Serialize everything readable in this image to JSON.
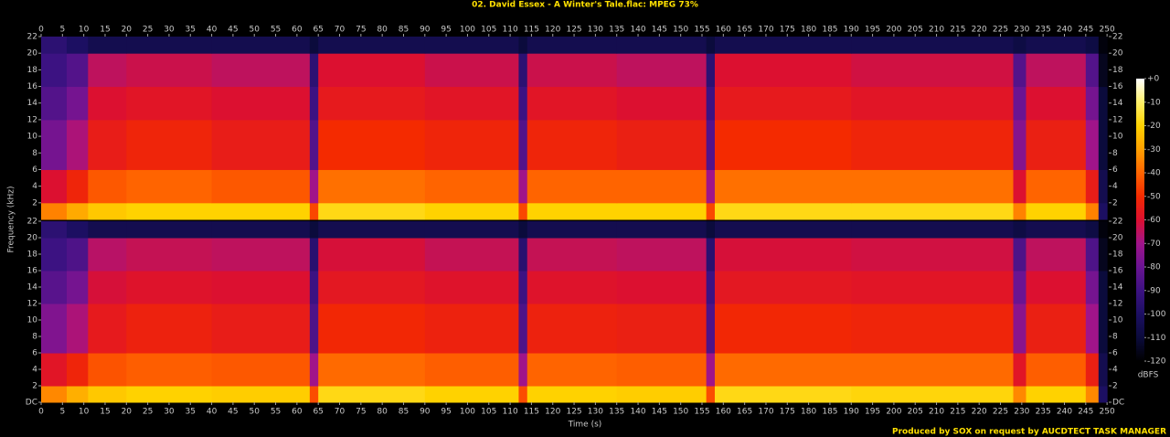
{
  "chart_data": {
    "type": "heatmap",
    "title": "02. David Essex - A Winter's Tale.flac: MPEG 73%",
    "xlabel": "Time (s)",
    "ylabel": "Frequency (kHz)",
    "footer": "Produced by SOX on request by AUCDTECT TASK MANAGER",
    "xlim": [
      0,
      250.4
    ],
    "xticks": [
      0,
      5,
      10,
      15,
      20,
      25,
      30,
      35,
      40,
      45,
      50,
      55,
      60,
      65,
      70,
      75,
      80,
      85,
      90,
      95,
      100,
      105,
      110,
      115,
      120,
      125,
      130,
      135,
      140,
      145,
      150,
      155,
      160,
      165,
      170,
      175,
      180,
      185,
      190,
      195,
      200,
      205,
      210,
      215,
      220,
      225,
      230,
      235,
      240,
      245,
      250
    ],
    "ylim": [
      0,
      22
    ],
    "x_bins": [
      0,
      6,
      11,
      20,
      40,
      63,
      65,
      90,
      112,
      114,
      135,
      156,
      158,
      190,
      228,
      231,
      245,
      248,
      250
    ],
    "y_bins": [
      0,
      2,
      6,
      12,
      16,
      20,
      22
    ],
    "colormap": [
      "#000000",
      "#0b0b3c",
      "#1c0f62",
      "#3c1282",
      "#6a1492",
      "#a0148a",
      "#dc1030",
      "#f42a00",
      "#ff6400",
      "#ffa000",
      "#ffd200",
      "#fff06a",
      "#ffffff"
    ],
    "channels": [
      {
        "yticks": [
          2,
          4,
          6,
          8,
          10,
          12,
          14,
          16,
          18,
          20,
          22
        ],
        "values": [
          [
            -35,
            -28,
            -22,
            -20,
            -20,
            -45,
            -18,
            -20,
            -45,
            -20,
            -20,
            -45,
            -18,
            -18,
            -35,
            -20,
            -35,
            -100
          ],
          [
            -60,
            -52,
            -42,
            -40,
            -42,
            -70,
            -38,
            -40,
            -70,
            -40,
            -40,
            -70,
            -38,
            -38,
            -60,
            -40,
            -55,
            -105
          ],
          [
            -78,
            -68,
            -55,
            -52,
            -55,
            -85,
            -50,
            -52,
            -85,
            -52,
            -54,
            -85,
            -50,
            -52,
            -75,
            -54,
            -70,
            -110
          ],
          [
            -85,
            -78,
            -60,
            -58,
            -60,
            -90,
            -56,
            -58,
            -90,
            -58,
            -60,
            -90,
            -56,
            -58,
            -80,
            -60,
            -78,
            -110
          ],
          [
            -90,
            -85,
            -65,
            -63,
            -65,
            -95,
            -60,
            -63,
            -95,
            -63,
            -65,
            -95,
            -60,
            -62,
            -85,
            -65,
            -85,
            -115
          ],
          [
            -95,
            -100,
            -105,
            -105,
            -105,
            -110,
            -105,
            -105,
            -110,
            -105,
            -105,
            -110,
            -105,
            -105,
            -108,
            -105,
            -108,
            -118
          ]
        ]
      },
      {
        "yticks": [
          {
            "value": 0,
            "label": "DC"
          },
          2,
          4,
          6,
          8,
          10,
          12,
          14,
          16,
          18,
          20,
          22
        ],
        "values": [
          [
            -34,
            -27,
            -22,
            -20,
            -21,
            -44,
            -18,
            -20,
            -44,
            -20,
            -21,
            -44,
            -18,
            -19,
            -34,
            -20,
            -34,
            -100
          ],
          [
            -58,
            -52,
            -43,
            -41,
            -42,
            -70,
            -39,
            -41,
            -70,
            -40,
            -41,
            -70,
            -39,
            -39,
            -58,
            -41,
            -54,
            -105
          ],
          [
            -76,
            -68,
            -56,
            -53,
            -55,
            -86,
            -51,
            -53,
            -86,
            -53,
            -54,
            -86,
            -51,
            -52,
            -74,
            -54,
            -70,
            -110
          ],
          [
            -84,
            -78,
            -61,
            -59,
            -60,
            -90,
            -57,
            -59,
            -90,
            -59,
            -60,
            -90,
            -57,
            -58,
            -80,
            -60,
            -78,
            -110
          ],
          [
            -90,
            -86,
            -66,
            -64,
            -65,
            -96,
            -61,
            -64,
            -96,
            -64,
            -65,
            -96,
            -61,
            -62,
            -86,
            -65,
            -86,
            -115
          ],
          [
            -95,
            -100,
            -105,
            -105,
            -105,
            -110,
            -105,
            -105,
            -110,
            -105,
            -105,
            -110,
            -105,
            -105,
            -108,
            -105,
            -108,
            -118
          ]
        ]
      }
    ],
    "colorbar": {
      "label": "dBFS",
      "lim": [
        -120,
        0
      ],
      "ticks": [
        {
          "value": 0,
          "label": "+0"
        },
        -10,
        -20,
        -30,
        -40,
        -50,
        -60,
        -70,
        -80,
        -90,
        -100,
        -110,
        -120
      ]
    }
  }
}
